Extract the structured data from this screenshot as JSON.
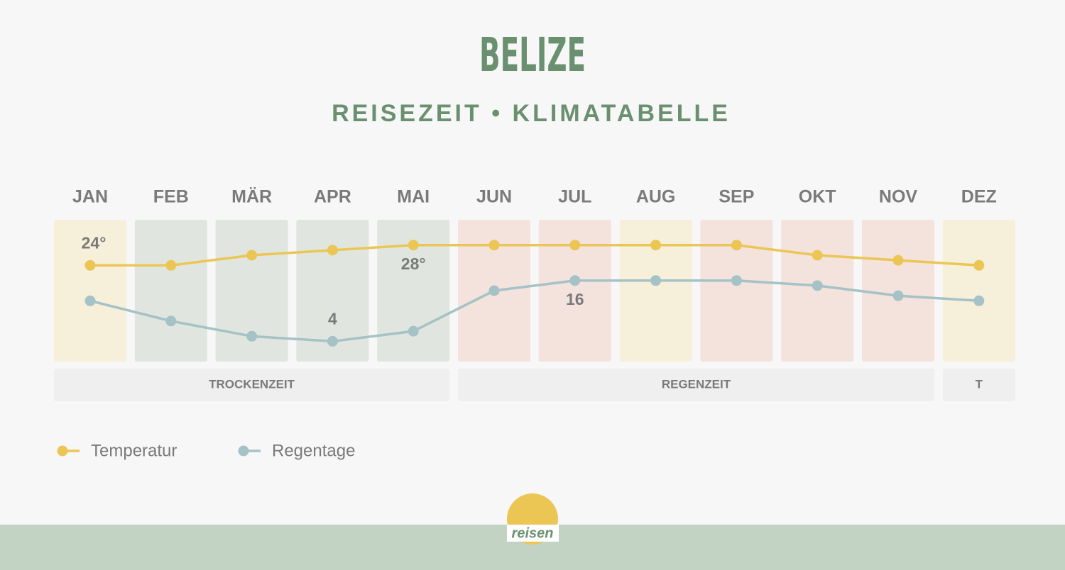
{
  "chart_data": {
    "type": "line",
    "title": "BELIZE",
    "subtitle": "REISEZEIT • KLIMATABELLE",
    "categories": [
      "JAN",
      "FEB",
      "MÄR",
      "APR",
      "MAI",
      "JUN",
      "JUL",
      "AUG",
      "SEP",
      "OKT",
      "NOV",
      "DEZ"
    ],
    "series": [
      {
        "name": "Temperatur",
        "color": "#ecc655",
        "axis": "y",
        "values": [
          24,
          24,
          26,
          27,
          28,
          28,
          28,
          28,
          28,
          26,
          25,
          24
        ],
        "value_labels": [
          "24°",
          null,
          null,
          null,
          "28°",
          null,
          null,
          null,
          null,
          null,
          null,
          null
        ]
      },
      {
        "name": "Regentage",
        "color": "#a5c2c6",
        "axis": "y2",
        "values": [
          12,
          8,
          5,
          4,
          6,
          14,
          16,
          16,
          16,
          15,
          13,
          12
        ],
        "value_labels": [
          null,
          null,
          null,
          "4",
          null,
          null,
          "16",
          null,
          null,
          null,
          null,
          null
        ]
      }
    ],
    "ylim": [
      5,
      33
    ],
    "y2lim": [
      0,
      28
    ],
    "month_colors": [
      "#f6efda",
      "#e0e6df",
      "#e0e6df",
      "#e0e6df",
      "#e0e6df",
      "#f4e2dd",
      "#f4e2dd",
      "#f6efda",
      "#f4e2dd",
      "#f4e2dd",
      "#f4e2dd",
      "#f6efda"
    ],
    "seasons": [
      {
        "label": "TROCKENZEIT",
        "from": "JAN",
        "to": "MAI"
      },
      {
        "label": "REGENZEIT",
        "from": "JUN",
        "to": "NOV"
      },
      {
        "label": "T",
        "from": "DEZ",
        "to": "DEZ"
      }
    ],
    "logo": "reisen"
  }
}
